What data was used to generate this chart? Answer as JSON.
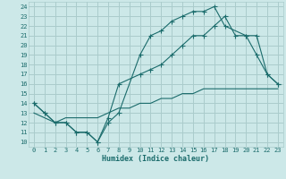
{
  "xlabel": "Humidex (Indice chaleur)",
  "bg_color": "#cce8e8",
  "grid_color": "#aacccc",
  "line_color": "#1a6b6b",
  "xlim": [
    -0.5,
    23.5
  ],
  "ylim": [
    9.5,
    24.5
  ],
  "xticks": [
    0,
    1,
    2,
    3,
    4,
    5,
    6,
    7,
    8,
    9,
    10,
    11,
    12,
    13,
    14,
    15,
    16,
    17,
    18,
    19,
    20,
    21,
    22,
    23
  ],
  "yticks": [
    10,
    11,
    12,
    13,
    14,
    15,
    16,
    17,
    18,
    19,
    20,
    21,
    22,
    23,
    24
  ],
  "line1_x": [
    0,
    1,
    2,
    3,
    4,
    5,
    6,
    7,
    8,
    10,
    11,
    12,
    13,
    14,
    15,
    16,
    17,
    18,
    20,
    21,
    22,
    23
  ],
  "line1_y": [
    14,
    13,
    12,
    12,
    11,
    11,
    10,
    12,
    13,
    19,
    21,
    21.5,
    22.5,
    23,
    23.5,
    23.5,
    24,
    22,
    21,
    21,
    17,
    16
  ],
  "line2_x": [
    0,
    1,
    2,
    3,
    4,
    5,
    6,
    7,
    8,
    10,
    11,
    12,
    13,
    14,
    15,
    16,
    17,
    18,
    19,
    20,
    21,
    22,
    23
  ],
  "line2_y": [
    14,
    13,
    12,
    12,
    11,
    11,
    10,
    12.5,
    16,
    17,
    17.5,
    18,
    19,
    20,
    21,
    21,
    22,
    23,
    21,
    21,
    19,
    17,
    16
  ],
  "line3_x": [
    0,
    1,
    2,
    3,
    4,
    5,
    6,
    7,
    8,
    9,
    10,
    11,
    12,
    13,
    14,
    15,
    16,
    17,
    18,
    19,
    20,
    21,
    22,
    23
  ],
  "line3_y": [
    13,
    12.5,
    12,
    12.5,
    12.5,
    12.5,
    12.5,
    13,
    13.5,
    13.5,
    14,
    14,
    14.5,
    14.5,
    15,
    15,
    15.5,
    15.5,
    15.5,
    15.5,
    15.5,
    15.5,
    15.5,
    15.5
  ]
}
